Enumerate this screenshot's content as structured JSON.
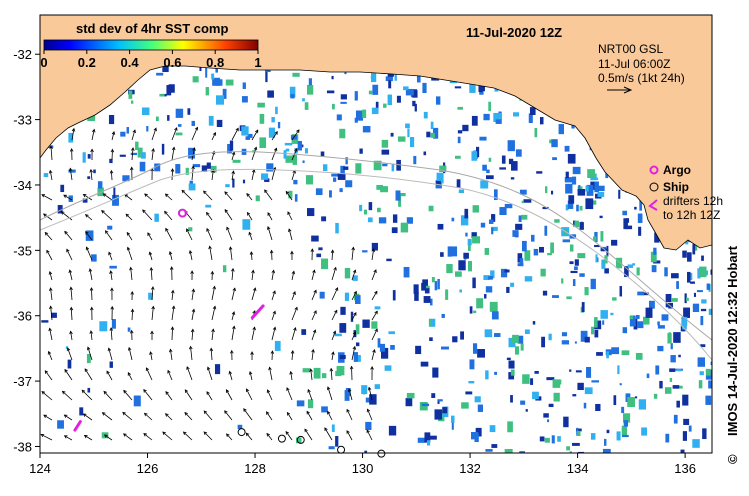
{
  "map": {
    "date_title": "11-Jul-2020 12Z",
    "colorbar": {
      "label": "std dev of 4hr SST comp",
      "ticks": [
        "0",
        "0.2",
        "0.4",
        "0.6",
        "0.8",
        "1"
      ],
      "min": 0,
      "max": 1
    },
    "current_info": {
      "source": "NRT00 GSL",
      "time": "11-Jul 06:00Z",
      "scale": "0.5m/s (1kt 24h)"
    },
    "legend": {
      "argo": "Argo",
      "ship": "Ship",
      "drifters_line1": "drifters 12h",
      "drifters_line2": "to 12h 12Z"
    },
    "credit": "IMOS 14-Jul-2020 12:32 Hobart",
    "copyright_symbol": "©",
    "x_ticks": [
      "124",
      "126",
      "128",
      "130",
      "132",
      "134",
      "136"
    ],
    "y_ticks": [
      "-32",
      "-33",
      "-34",
      "-35",
      "-36",
      "-37",
      "-38"
    ],
    "lon_range": [
      124,
      136.5
    ],
    "lat_range": [
      -38.1,
      -31.4
    ],
    "colors": {
      "land": "#f9c99a",
      "argo": "#e020e0",
      "drifter": "#e020e0",
      "sst_dark": "#1030a0",
      "sst_mid": "#2070e0",
      "sst_light": "#30b0f0",
      "sst_green": "#40c080"
    },
    "argo_floats": [
      {
        "lon": 126.65,
        "lat": -34.43
      }
    ],
    "ship_obs": [
      {
        "lon": 127.75,
        "lat": -37.78
      },
      {
        "lon": 128.5,
        "lat": -37.88
      },
      {
        "lon": 128.85,
        "lat": -37.9
      },
      {
        "lon": 129.6,
        "lat": -38.05
      },
      {
        "lon": 130.35,
        "lat": -38.11
      }
    ],
    "drifters": [
      {
        "lon0": 127.95,
        "lat0": -36.03,
        "lon1": 128.15,
        "lat1": -35.85
      },
      {
        "lon0": 124.65,
        "lat0": -37.75,
        "lon1": 124.75,
        "lat1": -37.62
      }
    ]
  }
}
